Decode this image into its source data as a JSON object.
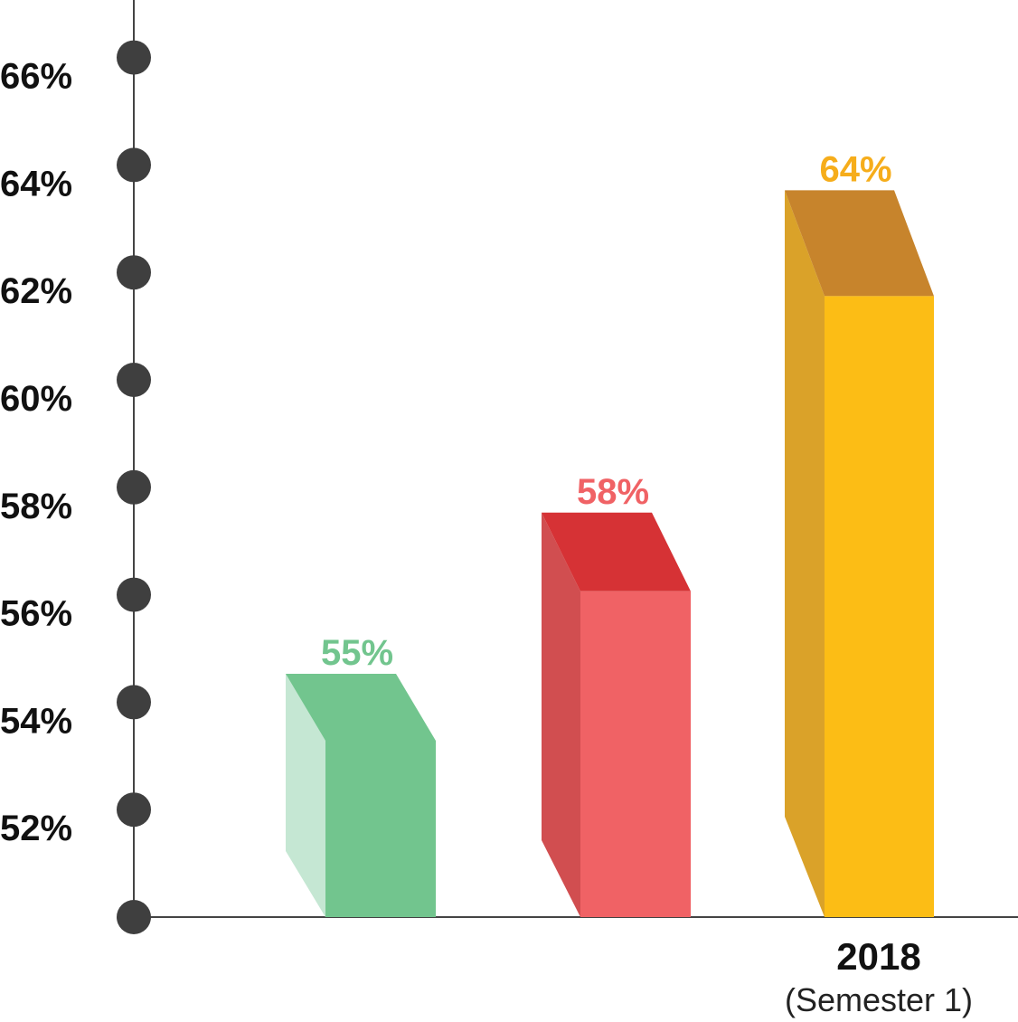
{
  "chart_data": {
    "type": "bar",
    "title": "",
    "xlabel": "",
    "ylabel": "",
    "ylim": [
      50,
      67
    ],
    "y_ticks": [
      {
        "value": 50,
        "label": ""
      },
      {
        "value": 52,
        "label": "52%"
      },
      {
        "value": 54,
        "label": "54%"
      },
      {
        "value": 56,
        "label": "56%"
      },
      {
        "value": 58,
        "label": "58%"
      },
      {
        "value": 60,
        "label": "60%"
      },
      {
        "value": 62,
        "label": "62%"
      },
      {
        "value": 64,
        "label": "64%"
      },
      {
        "value": 66,
        "label": "66%"
      }
    ],
    "bars": [
      {
        "value": 55,
        "label": "55%",
        "colors": {
          "front": "#72C58E",
          "side": "#C5E7D3",
          "top": "#72C58E",
          "text": "#72C58E"
        }
      },
      {
        "value": 58,
        "label": "58%",
        "colors": {
          "front": "#F06265",
          "side": "#D14E50",
          "top": "#D63235",
          "text": "#F06265"
        }
      },
      {
        "value": 64,
        "label": "64%",
        "colors": {
          "front": "#FCBD15",
          "side": "#DAA229",
          "top": "#C7842C",
          "text": "#F6AD1B"
        }
      }
    ],
    "category_label": {
      "year": "2018",
      "sub": "(Semester 1)"
    },
    "grid": false,
    "axis_color": "#444444",
    "dot_color": "#3F3F3F"
  }
}
